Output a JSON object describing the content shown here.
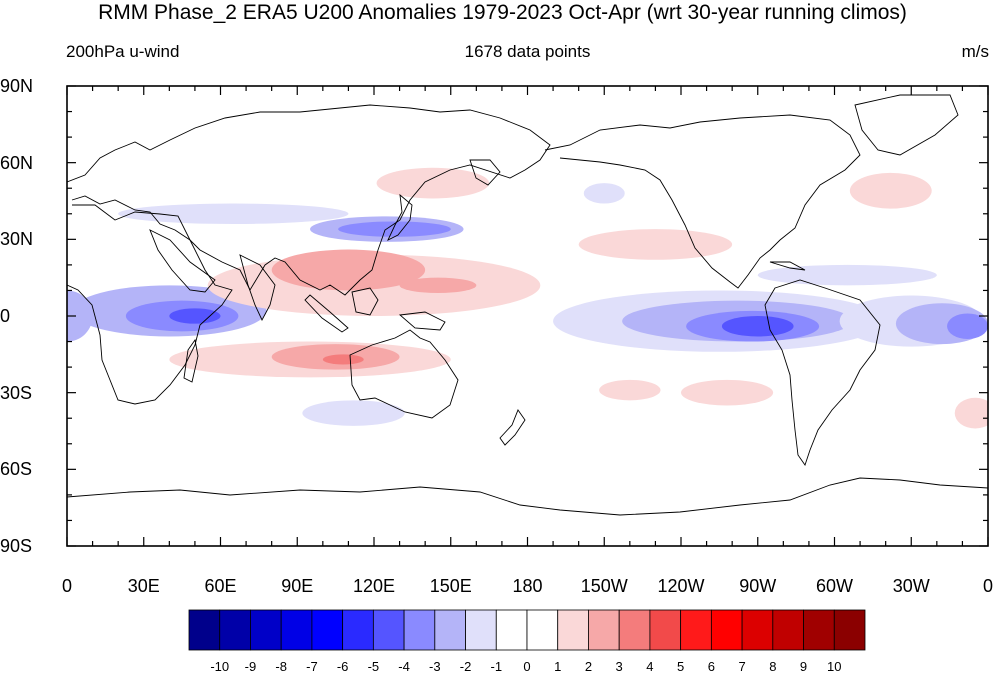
{
  "title": "RMM Phase_2 ERA5 U200 Anomalies 1979-2023 Oct-Apr (wrt 30-year running climos)",
  "subtitle_left": "200hPa u-wind",
  "subtitle_center": "1678 data points",
  "subtitle_right": "m/s",
  "lat_ticks": [
    {
      "label": "90N",
      "lat": 90
    },
    {
      "label": "60N",
      "lat": 60
    },
    {
      "label": "30N",
      "lat": 30
    },
    {
      "label": "0",
      "lat": 0
    },
    {
      "label": "30S",
      "lat": -30
    },
    {
      "label": "60S",
      "lat": -60
    },
    {
      "label": "90S",
      "lat": -90
    }
  ],
  "lon_ticks": [
    {
      "label": "0",
      "lon": 0
    },
    {
      "label": "30E",
      "lon": 30
    },
    {
      "label": "60E",
      "lon": 60
    },
    {
      "label": "90E",
      "lon": 90
    },
    {
      "label": "120E",
      "lon": 120
    },
    {
      "label": "150E",
      "lon": 150
    },
    {
      "label": "180",
      "lon": 180
    },
    {
      "label": "150W",
      "lon": 210
    },
    {
      "label": "120W",
      "lon": 240
    },
    {
      "label": "90W",
      "lon": 270
    },
    {
      "label": "60W",
      "lon": 300
    },
    {
      "label": "30W",
      "lon": 330
    },
    {
      "label": "0",
      "lon": 360
    }
  ],
  "colorbar": {
    "colors": [
      "#00008b",
      "#0000a8",
      "#0000c8",
      "#0000e6",
      "#0000ff",
      "#2a2aff",
      "#5555ff",
      "#8a8aff",
      "#b4b4f8",
      "#e0e0fa",
      "#ffffff",
      "#ffffff",
      "#fad8d8",
      "#f6a8a8",
      "#f47c7c",
      "#f24a4a",
      "#ff1a1a",
      "#ff0000",
      "#dc0000",
      "#c00000",
      "#a00000",
      "#8b0000"
    ],
    "labels": [
      "-10",
      "-9",
      "-8",
      "-7",
      "-6",
      "-5",
      "-4",
      "-3",
      "-2",
      "-1",
      "0",
      "1",
      "2",
      "3",
      "4",
      "5",
      "6",
      "7",
      "8",
      "9",
      "10"
    ]
  },
  "anomaly_regions": [
    {
      "lon": 40,
      "lat": 2,
      "rx": 38,
      "ry": 10,
      "level": -2
    },
    {
      "lon": 45,
      "lat": 0,
      "rx": 22,
      "ry": 6,
      "level": -3
    },
    {
      "lon": 50,
      "lat": 0,
      "rx": 10,
      "ry": 3,
      "level": -4
    },
    {
      "lon": 0,
      "lat": 0,
      "rx": 10,
      "ry": 10,
      "level": -2
    },
    {
      "lon": 125,
      "lat": 34,
      "rx": 30,
      "ry": 5,
      "level": -2
    },
    {
      "lon": 128,
      "lat": 34,
      "rx": 22,
      "ry": 3,
      "level": -3
    },
    {
      "lon": 210,
      "lat": 48,
      "rx": 8,
      "ry": 4,
      "level": -1
    },
    {
      "lon": 65,
      "lat": 40,
      "rx": 45,
      "ry": 4,
      "level": -1
    },
    {
      "lon": 255,
      "lat": -2,
      "rx": 65,
      "ry": 12,
      "level": -1
    },
    {
      "lon": 262,
      "lat": -2,
      "rx": 45,
      "ry": 8,
      "level": -2
    },
    {
      "lon": 268,
      "lat": -4,
      "rx": 26,
      "ry": 6,
      "level": -3
    },
    {
      "lon": 270,
      "lat": -4,
      "rx": 14,
      "ry": 4,
      "level": -4
    },
    {
      "lon": 330,
      "lat": -2,
      "rx": 28,
      "ry": 10,
      "level": -1
    },
    {
      "lon": 342,
      "lat": -3,
      "rx": 18,
      "ry": 8,
      "level": -2
    },
    {
      "lon": 352,
      "lat": -4,
      "rx": 8,
      "ry": 5,
      "level": -3
    },
    {
      "lon": 305,
      "lat": 16,
      "rx": 35,
      "ry": 4,
      "level": -1
    },
    {
      "lon": 112,
      "lat": -38,
      "rx": 20,
      "ry": 5,
      "level": -1
    },
    {
      "lon": 120,
      "lat": 12,
      "rx": 65,
      "ry": 12,
      "level": 1
    },
    {
      "lon": 110,
      "lat": 18,
      "rx": 30,
      "ry": 8,
      "level": 2
    },
    {
      "lon": 145,
      "lat": 12,
      "rx": 15,
      "ry": 3,
      "level": 2
    },
    {
      "lon": 95,
      "lat": -17,
      "rx": 55,
      "ry": 7,
      "level": 1
    },
    {
      "lon": 105,
      "lat": -16,
      "rx": 25,
      "ry": 5,
      "level": 2
    },
    {
      "lon": 108,
      "lat": -17,
      "rx": 8,
      "ry": 2,
      "level": 3
    },
    {
      "lon": 143,
      "lat": 52,
      "rx": 22,
      "ry": 6,
      "level": 1
    },
    {
      "lon": 230,
      "lat": 28,
      "rx": 30,
      "ry": 6,
      "level": 1
    },
    {
      "lon": 322,
      "lat": 49,
      "rx": 16,
      "ry": 7,
      "level": 1
    },
    {
      "lon": 220,
      "lat": -29,
      "rx": 12,
      "ry": 4,
      "level": 1
    },
    {
      "lon": 258,
      "lat": -30,
      "rx": 18,
      "ry": 5,
      "level": 1
    },
    {
      "lon": 355,
      "lat": -38,
      "rx": 8,
      "ry": 6,
      "level": 1
    }
  ]
}
